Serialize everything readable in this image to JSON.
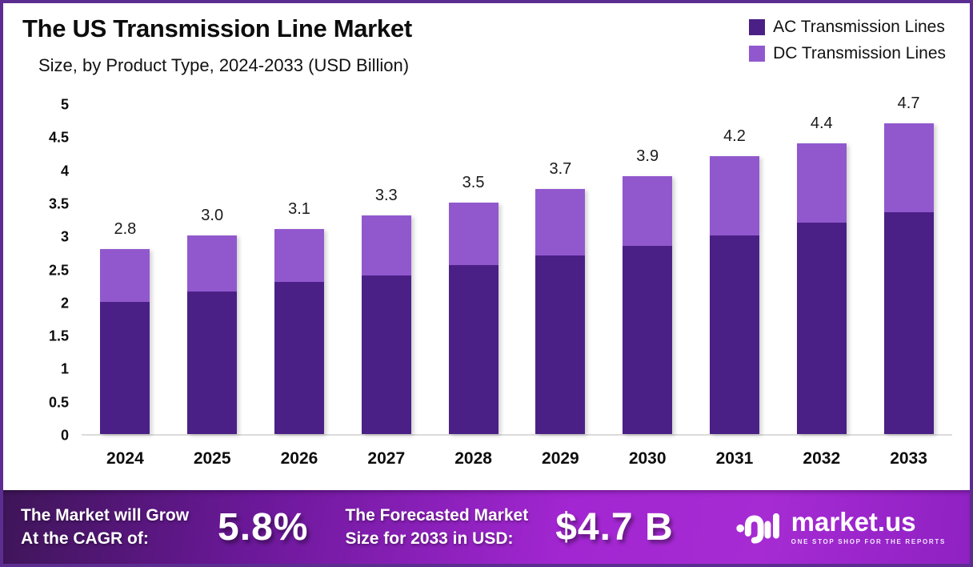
{
  "frame": {
    "border_color": "#5C2D91",
    "background": "#FFFFFF"
  },
  "chart_data": {
    "type": "bar",
    "stacked": true,
    "title": "The US Transmission Line Market",
    "subtitle": "Size, by Product Type, 2024-2033 (USD Billion)",
    "categories": [
      "2024",
      "2025",
      "2026",
      "2027",
      "2028",
      "2029",
      "2030",
      "2031",
      "2032",
      "2033"
    ],
    "series": [
      {
        "name": "AC Transmission Lines",
        "color": "#4B2086",
        "values": [
          2.0,
          2.15,
          2.3,
          2.4,
          2.55,
          2.7,
          2.85,
          3.0,
          3.2,
          3.35
        ]
      },
      {
        "name": "DC Transmission Lines",
        "color": "#9158CE",
        "values": [
          0.8,
          0.85,
          0.8,
          0.9,
          0.95,
          1.0,
          1.05,
          1.2,
          1.2,
          1.35
        ]
      }
    ],
    "total_labels": [
      "2.8",
      "3.0",
      "3.1",
      "3.3",
      "3.5",
      "3.7",
      "3.9",
      "4.2",
      "4.4",
      "4.7"
    ],
    "ylim": [
      0,
      5
    ],
    "yticks": [
      "0",
      "0.5",
      "1",
      "1.5",
      "2",
      "2.5",
      "3",
      "3.5",
      "4",
      "4.5",
      "5"
    ],
    "grid": false,
    "legend_position": "top-right",
    "axis_line_color": "#DBDBDB"
  },
  "banner": {
    "gradient": [
      "#3E1558",
      "#A62BD3"
    ],
    "cagr_label_line1": "The Market will Grow",
    "cagr_label_line2": "At the CAGR of:",
    "cagr_value": "5.8%",
    "forecast_label_line1": "The Forecasted Market",
    "forecast_label_line2": "Size for 2033 in USD:",
    "forecast_value": "$4.7 B",
    "logo": {
      "name": "market.us",
      "tagline": "ONE STOP SHOP FOR THE REPORTS"
    }
  }
}
